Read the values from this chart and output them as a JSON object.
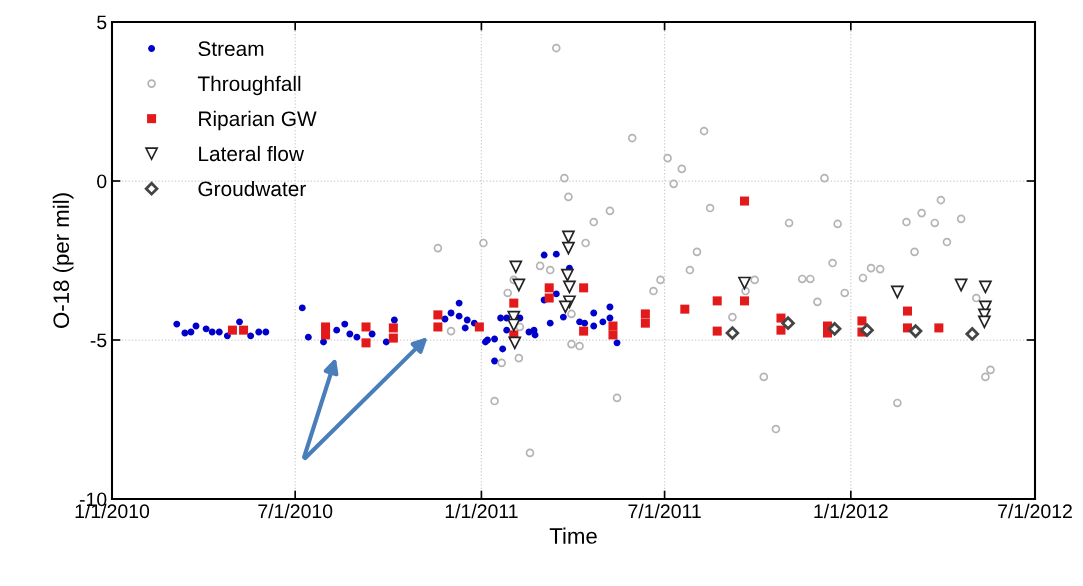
{
  "chart_data": {
    "type": "scatter",
    "xlabel": "Time",
    "ylabel": "O-18 (per mil)",
    "xlim": [
      "2010-01-01",
      "2012-07-01"
    ],
    "xticks": [
      {
        "value": "2010-01-01",
        "label": "1/1/2010"
      },
      {
        "value": "2010-07-01",
        "label": "7/1/2010"
      },
      {
        "value": "2011-01-01",
        "label": "1/1/2011"
      },
      {
        "value": "2011-07-01",
        "label": "7/1/2011"
      },
      {
        "value": "2012-01-01",
        "label": "1/1/2012"
      },
      {
        "value": "2012-07-01",
        "label": "7/1/2012"
      }
    ],
    "ylim": [
      -10,
      5
    ],
    "yticks": [
      -10,
      -5,
      0,
      5
    ],
    "grid": true,
    "legend": "top left",
    "series": [
      {
        "name": "Stream",
        "color": "#0000cc",
        "marker": "circle",
        "x": [
          "2010-03-06",
          "2010-03-14",
          "2010-03-20",
          "2010-03-25",
          "2010-04-04",
          "2010-04-10",
          "2010-04-17",
          "2010-04-25",
          "2010-05-07",
          "2010-05-18",
          "2010-05-26",
          "2010-06-02",
          "2010-07-08",
          "2010-07-14",
          "2010-07-29",
          "2010-08-11",
          "2010-08-19",
          "2010-08-24",
          "2010-08-31",
          "2010-09-15",
          "2010-09-29",
          "2010-10-07",
          "2010-11-26",
          "2010-12-02",
          "2010-12-10",
          "2010-12-10",
          "2010-12-16",
          "2010-12-18",
          "2010-12-25",
          "2011-01-05",
          "2011-01-07",
          "2011-01-14",
          "2011-01-22",
          "2011-01-14",
          "2011-01-20",
          "2011-01-26",
          "2011-01-26",
          "2011-02-08",
          "2011-02-17",
          "2011-02-23",
          "2011-02-22",
          "2011-03-04",
          "2011-03-16",
          "2011-03-10",
          "2011-03-04",
          "2011-03-16",
          "2011-03-23",
          "2011-03-29",
          "2011-04-08",
          "2011-04-13",
          "2011-04-22",
          "2011-04-22",
          "2011-05-01",
          "2011-05-08",
          "2011-05-08",
          "2011-05-15"
        ],
        "values": [
          -4.5,
          -4.78,
          -4.75,
          -4.56,
          -4.65,
          -4.75,
          -4.75,
          -4.87,
          -4.43,
          -4.87,
          -4.75,
          -4.75,
          -3.99,
          -4.91,
          -5.06,
          -4.69,
          -4.5,
          -4.81,
          -4.91,
          -4.81,
          -5.06,
          -4.37,
          -4.34,
          -4.15,
          -3.84,
          -4.25,
          -4.62,
          -4.37,
          -4.47,
          -5.06,
          -5.0,
          -4.97,
          -5.28,
          -5.66,
          -4.31,
          -4.31,
          -4.69,
          -4.31,
          -4.75,
          -4.84,
          -4.69,
          -2.33,
          -2.3,
          -4.47,
          -3.74,
          -3.55,
          -4.28,
          -2.74,
          -4.43,
          -4.47,
          -4.56,
          -4.15,
          -4.43,
          -3.96,
          -4.31,
          -5.09
        ]
      },
      {
        "name": "Throughfall",
        "color": "#b4b4b4",
        "marker": "circle",
        "x": [
          "2011-03-16",
          "2011-05-30",
          "2011-08-09",
          "2011-07-04",
          "2011-07-18",
          "2011-07-10",
          "2011-03-24",
          "2011-03-28",
          "2011-05-08",
          "2011-04-22",
          "2011-08-15",
          "2011-04-14",
          "2011-01-03",
          "2010-11-19",
          "2011-08-02",
          "2011-07-26",
          "2011-06-27",
          "2011-06-20",
          "2011-02-28",
          "2011-03-10",
          "2011-02-02",
          "2011-01-27",
          "2011-02-08",
          "2010-12-02",
          "2011-09-06",
          "2011-09-19",
          "2011-09-28",
          "2011-03-31",
          "2011-03-31",
          "2011-04-08",
          "2011-01-21",
          "2011-02-07",
          "2011-01-14",
          "2011-05-15",
          "2011-02-18",
          "2011-10-07",
          "2011-12-06",
          "2011-11-01",
          "2011-12-19",
          "2011-12-14",
          "2011-11-14",
          "2011-11-22",
          "2011-12-26",
          "2011-11-29",
          "2012-01-13",
          "2012-01-21",
          "2012-01-30",
          "2012-02-25",
          "2012-03-11",
          "2012-03-24",
          "2012-03-30",
          "2012-04-19",
          "2012-04-05",
          "2012-03-04",
          "2012-05-04",
          "2011-10-19",
          "2012-02-16",
          "2012-05-13",
          "2012-05-18"
        ],
        "values": [
          4.18,
          1.35,
          1.57,
          0.72,
          0.38,
          -0.09,
          0.09,
          -0.5,
          -0.94,
          -1.29,
          -0.85,
          -1.95,
          -1.95,
          -2.11,
          -2.23,
          -2.8,
          -3.11,
          -3.46,
          -2.67,
          -2.8,
          -3.11,
          -3.52,
          -4.59,
          -4.72,
          -4.28,
          -3.46,
          -3.11,
          -4.18,
          -5.13,
          -5.19,
          -5.72,
          -5.57,
          -6.92,
          -6.82,
          -8.55,
          -6.16,
          0.09,
          -1.32,
          -1.35,
          -2.58,
          -3.08,
          -3.08,
          -3.52,
          -3.8,
          -3.05,
          -2.74,
          -2.77,
          -1.29,
          -1.01,
          -1.32,
          -0.6,
          -1.19,
          -1.92,
          -2.23,
          -3.68,
          -7.8,
          -6.98,
          -6.16,
          -5.94
        ]
      },
      {
        "name": "Riparian GW",
        "color": "#e31a1c",
        "marker": "square",
        "x": [
          "2010-04-30",
          "2010-05-11",
          "2010-07-31",
          "2010-07-31",
          "2010-09-09",
          "2010-09-09",
          "2010-10-06",
          "2010-10-06",
          "2010-11-19",
          "2010-11-19",
          "2010-12-30",
          "2011-02-02",
          "2011-02-02",
          "2011-03-09",
          "2011-03-09",
          "2011-04-12",
          "2011-04-12",
          "2011-05-11",
          "2011-05-11",
          "2011-06-12",
          "2011-06-12",
          "2011-07-21",
          "2011-08-22",
          "2011-08-22",
          "2011-09-18",
          "2011-09-18",
          "2011-10-24",
          "2011-10-24",
          "2011-12-09",
          "2011-12-09",
          "2012-01-12",
          "2012-01-12",
          "2012-02-26",
          "2012-02-26",
          "2012-03-28"
        ],
        "values": [
          -4.69,
          -4.69,
          -4.59,
          -4.84,
          -4.59,
          -5.09,
          -4.62,
          -4.94,
          -4.21,
          -4.59,
          -4.59,
          -3.84,
          -4.84,
          -3.36,
          -3.68,
          -3.36,
          -4.72,
          -4.56,
          -4.84,
          -4.18,
          -4.47,
          -4.03,
          -3.77,
          -4.72,
          -0.63,
          -3.77,
          -4.31,
          -4.69,
          -4.56,
          -4.78,
          -4.4,
          -4.75,
          -4.09,
          -4.62,
          -4.62
        ]
      },
      {
        "name": "Lateral flow",
        "color": "#222222",
        "marker": "triangle",
        "x": [
          "2011-02-04",
          "2011-02-07",
          "2011-02-02",
          "2011-02-02",
          "2011-02-03",
          "2011-03-28",
          "2011-03-28",
          "2011-03-27",
          "2011-03-29",
          "2011-03-29",
          "2011-03-25",
          "2011-09-18",
          "2012-02-16",
          "2012-04-19",
          "2012-05-13",
          "2012-05-13",
          "2012-05-12",
          "2012-05-12"
        ],
        "values": [
          -2.7,
          -3.27,
          -4.28,
          -4.53,
          -5.09,
          -1.76,
          -2.11,
          -2.96,
          -3.33,
          -3.8,
          -3.96,
          -3.21,
          -3.49,
          -3.27,
          -3.33,
          -3.96,
          -4.21,
          -4.43
        ]
      },
      {
        "name": "Groudwater",
        "color": "#444444",
        "marker": "diamond",
        "x": [
          "2011-09-06",
          "2011-10-31",
          "2011-12-16",
          "2012-01-17",
          "2012-03-05",
          "2012-04-30"
        ],
        "values": [
          -4.78,
          -4.47,
          -4.65,
          -4.69,
          -4.72,
          -4.81
        ]
      }
    ]
  }
}
